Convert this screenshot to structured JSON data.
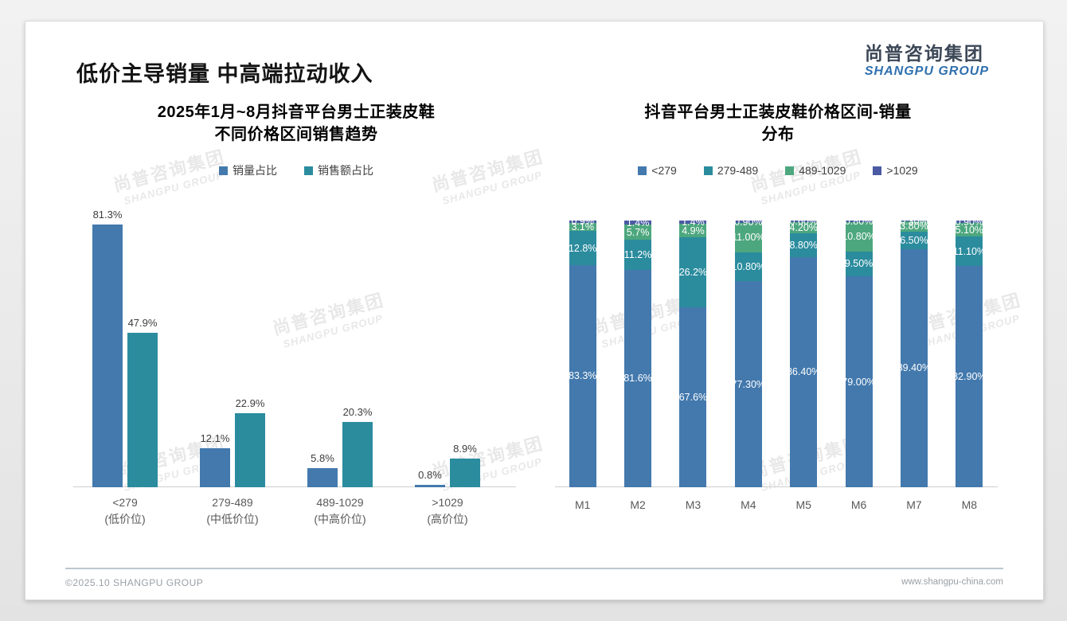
{
  "page": {
    "title": "低价主导销量 中高端拉动收入",
    "footer_left": "©2025.10 SHANGPU GROUP",
    "footer_right": "www.shangpu-china.com"
  },
  "logo": {
    "name_cn": "尚普咨询集团",
    "name_en": "SHANGPU GROUP"
  },
  "watermark": {
    "line1": "尚普咨询集团",
    "line2": "SHANGPU GROUP"
  },
  "colors": {
    "series_blue": "#4379ad",
    "series_teal": "#2b8c9e",
    "series_green": "#4da77e",
    "series_indigo": "#4a5ba3",
    "logo_blue": "#2f6fae"
  },
  "chart_data": [
    {
      "type": "bar",
      "stacked": false,
      "title": "2025年1月~8月抖音平台男士正装皮鞋\n不同价格区间销售趋势",
      "legend_position": "top",
      "grid": false,
      "ylim": [
        0,
        85
      ],
      "value_labels": "above bars",
      "categories": [
        "<279\n(低价位)",
        "279-489\n(中低价位)",
        "489-1029\n(中高价位)",
        ">1029\n(高价位)"
      ],
      "series": [
        {
          "name": "销量占比",
          "color": "#4379ad",
          "values": [
            81.3,
            12.1,
            5.8,
            0.8
          ],
          "labels": [
            "81.3%",
            "12.1%",
            "5.8%",
            "0.8%"
          ]
        },
        {
          "name": "销售额占比",
          "color": "#2b8c9e",
          "values": [
            47.9,
            22.9,
            20.3,
            8.9
          ],
          "labels": [
            "47.9%",
            "22.9%",
            "20.3%",
            "8.9%"
          ]
        }
      ]
    },
    {
      "type": "bar",
      "stacked": true,
      "percent_stack": true,
      "title": "抖音平台男士正装皮鞋价格区间-销量\n分布",
      "legend_position": "top",
      "grid": false,
      "ylim": [
        0,
        100
      ],
      "value_labels": "inside segments, white",
      "categories": [
        "M1",
        "M2",
        "M3",
        "M4",
        "M5",
        "M6",
        "M7",
        "M8"
      ],
      "series": [
        {
          "name": "<279",
          "color": "#4379ad",
          "values": [
            83.3,
            81.6,
            67.6,
            77.3,
            86.4,
            79.0,
            89.4,
            82.9
          ],
          "labels": [
            "83.3%",
            "81.6%",
            "67.6%",
            "77.30%",
            "86.40%",
            "79.00%",
            "89.40%",
            "82.90%"
          ]
        },
        {
          "name": "279-489",
          "color": "#2b8c9e",
          "values": [
            12.8,
            11.2,
            26.2,
            10.8,
            8.8,
            9.5,
            6.5,
            11.1
          ],
          "labels": [
            "12.8%",
            "11.2%",
            "26.2%",
            "10.80%",
            "8.80%",
            "9.50%",
            "6.50%",
            "11.10%"
          ]
        },
        {
          "name": "489-1029",
          "color": "#4da77e",
          "values": [
            3.1,
            5.7,
            4.9,
            11.0,
            4.2,
            10.8,
            3.8,
            5.1
          ],
          "labels": [
            "3.1%",
            "5.7%",
            "4.9%",
            "11.00%",
            "4.20%",
            "10.80%",
            "3.80%",
            "5.10%"
          ]
        },
        {
          "name": ">1029",
          "color": "#4a5ba3",
          "values": [
            0.9,
            1.4,
            1.4,
            0.9,
            0.6,
            0.8,
            0.3,
            0.9
          ],
          "labels": [
            "0.9%",
            "1.4%",
            "1.4%",
            "0.90%",
            "0.60%",
            "0.80%",
            "0.30%",
            "0.90%"
          ]
        }
      ]
    }
  ]
}
